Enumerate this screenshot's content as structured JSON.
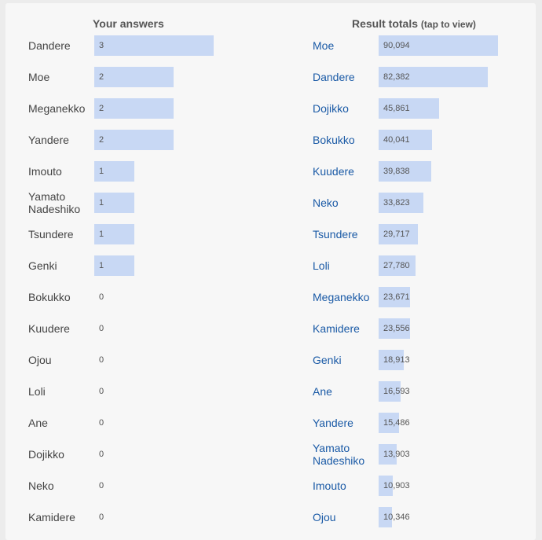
{
  "your_answers": {
    "header": "Your answers",
    "max": 3,
    "items": [
      {
        "label": "Dandere",
        "value": 3
      },
      {
        "label": "Moe",
        "value": 2
      },
      {
        "label": "Meganekko",
        "value": 2
      },
      {
        "label": "Yandere",
        "value": 2
      },
      {
        "label": "Imouto",
        "value": 1
      },
      {
        "label": "Yamato Nadeshiko",
        "value": 1
      },
      {
        "label": "Tsundere",
        "value": 1
      },
      {
        "label": "Genki",
        "value": 1
      },
      {
        "label": "Bokukko",
        "value": 0
      },
      {
        "label": "Kuudere",
        "value": 0
      },
      {
        "label": "Ojou",
        "value": 0
      },
      {
        "label": "Loli",
        "value": 0
      },
      {
        "label": "Ane",
        "value": 0
      },
      {
        "label": "Dojikko",
        "value": 0
      },
      {
        "label": "Neko",
        "value": 0
      },
      {
        "label": "Kamidere",
        "value": 0
      }
    ]
  },
  "result_totals": {
    "header": "Result totals",
    "header_sub": "(tap to view)",
    "max": 90094,
    "items": [
      {
        "label": "Moe",
        "value": 90094,
        "display": "90,094"
      },
      {
        "label": "Dandere",
        "value": 82382,
        "display": "82,382"
      },
      {
        "label": "Dojikko",
        "value": 45861,
        "display": "45,861"
      },
      {
        "label": "Bokukko",
        "value": 40041,
        "display": "40,041"
      },
      {
        "label": "Kuudere",
        "value": 39838,
        "display": "39,838"
      },
      {
        "label": "Neko",
        "value": 33823,
        "display": "33,823"
      },
      {
        "label": "Tsundere",
        "value": 29717,
        "display": "29,717"
      },
      {
        "label": "Loli",
        "value": 27780,
        "display": "27,780"
      },
      {
        "label": "Meganekko",
        "value": 23671,
        "display": "23,671"
      },
      {
        "label": "Kamidere",
        "value": 23556,
        "display": "23,556"
      },
      {
        "label": "Genki",
        "value": 18913,
        "display": "18,913"
      },
      {
        "label": "Ane",
        "value": 16593,
        "display": "16,593"
      },
      {
        "label": "Yandere",
        "value": 15486,
        "display": "15,486"
      },
      {
        "label": "Yamato Nadeshiko",
        "value": 13903,
        "display": "13,903"
      },
      {
        "label": "Imouto",
        "value": 10903,
        "display": "10,903"
      },
      {
        "label": "Ojou",
        "value": 10346,
        "display": "10,346"
      }
    ]
  }
}
